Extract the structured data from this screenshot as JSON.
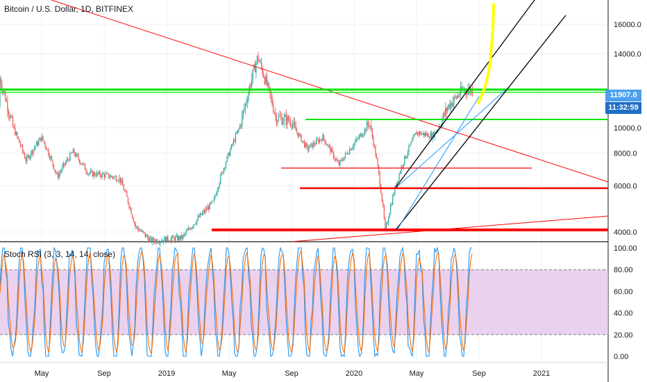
{
  "header": {
    "title": "Bitcoin / U.S. Dollar, 1D, BITFINEX",
    "rsi_title": "Stoch RSI (3, 3, 14, 14, close)"
  },
  "price_tags": {
    "last_price": "11907.0",
    "countdown": "11:32:59",
    "last_price_color": "#4c9ff0",
    "countdown_color": "#1f6fc5"
  },
  "colors": {
    "candle_up": "#26a69a",
    "candle_down": "#ef5350",
    "trend_red": "#ff0000",
    "support_green": "#00e600",
    "channel_black": "#000000",
    "channel_blue": "#2196f3",
    "projection_yellow": "#ffff00",
    "rsi_k": "#2196f3",
    "rsi_d": "#ff6d00",
    "rsi_band": "#e1bee7"
  },
  "chart_data": [
    {
      "type": "candlestick",
      "title": "Bitcoin / U.S. Dollar, 1D, BITFINEX",
      "x_ticks": [
        "May",
        "Sep",
        "2019",
        "May",
        "Sep",
        "2020",
        "May",
        "Sep",
        "2021"
      ],
      "y_ticks": [
        "4000.0",
        "6000.0",
        "8000.0",
        "10000.0",
        "14000.0",
        "16000.0"
      ],
      "ylim": [
        3200,
        17500
      ],
      "grid": true,
      "approx_close_path": [
        {
          "x": "2018-03",
          "y": 10500
        },
        {
          "x": "2018-04",
          "y": 7500
        },
        {
          "x": "2018-05",
          "y": 9200
        },
        {
          "x": "2018-06",
          "y": 6500
        },
        {
          "x": "2018-07",
          "y": 8100
        },
        {
          "x": "2018-08",
          "y": 6700
        },
        {
          "x": "2018-09",
          "y": 6600
        },
        {
          "x": "2018-10",
          "y": 6400
        },
        {
          "x": "2018-11",
          "y": 4200
        },
        {
          "x": "2018-12",
          "y": 3700
        },
        {
          "x": "2019-02",
          "y": 3800
        },
        {
          "x": "2019-04",
          "y": 5200
        },
        {
          "x": "2019-05",
          "y": 8000
        },
        {
          "x": "2019-06",
          "y": 11000
        },
        {
          "x": "2019-06-26",
          "y": 13800
        },
        {
          "x": "2019-08",
          "y": 10500
        },
        {
          "x": "2019-09",
          "y": 10300
        },
        {
          "x": "2019-10",
          "y": 8300
        },
        {
          "x": "2019-11",
          "y": 9200
        },
        {
          "x": "2019-12",
          "y": 7200
        },
        {
          "x": "2020-01",
          "y": 8700
        },
        {
          "x": "2020-02",
          "y": 10300
        },
        {
          "x": "2020-03",
          "y": 4000
        },
        {
          "x": "2020-04",
          "y": 7000
        },
        {
          "x": "2020-05",
          "y": 9600
        },
        {
          "x": "2020-06",
          "y": 9300
        },
        {
          "x": "2020-07",
          "y": 11000
        },
        {
          "x": "2020-08",
          "y": 11900
        }
      ],
      "lines": [
        {
          "label": "descending resistance",
          "color": "red",
          "from": {
            "x": "2018-01",
            "y": 17000
          },
          "to": {
            "x": "2021-03",
            "y": 6800
          }
        },
        {
          "label": "horizontal resistance",
          "color": "green",
          "y": 12000
        },
        {
          "label": "horizontal support",
          "color": "green",
          "y": 10400
        },
        {
          "label": "horizontal level",
          "color": "red",
          "y": 7700
        },
        {
          "label": "horizontal level",
          "color": "red",
          "y": 6500
        },
        {
          "label": "horizontal support",
          "color": "red",
          "y": 4100
        }
      ]
    },
    {
      "type": "line",
      "title": "Stoch RSI (3, 3, 14, 14, close)",
      "y_ticks": [
        "0.00",
        "20.00",
        "40.00",
        "60.00",
        "80.00",
        "100.00"
      ],
      "ylim": [
        -5,
        105
      ],
      "bands": [
        20,
        80
      ],
      "series_colors": [
        "#2196f3",
        "#ff6d00"
      ]
    }
  ]
}
